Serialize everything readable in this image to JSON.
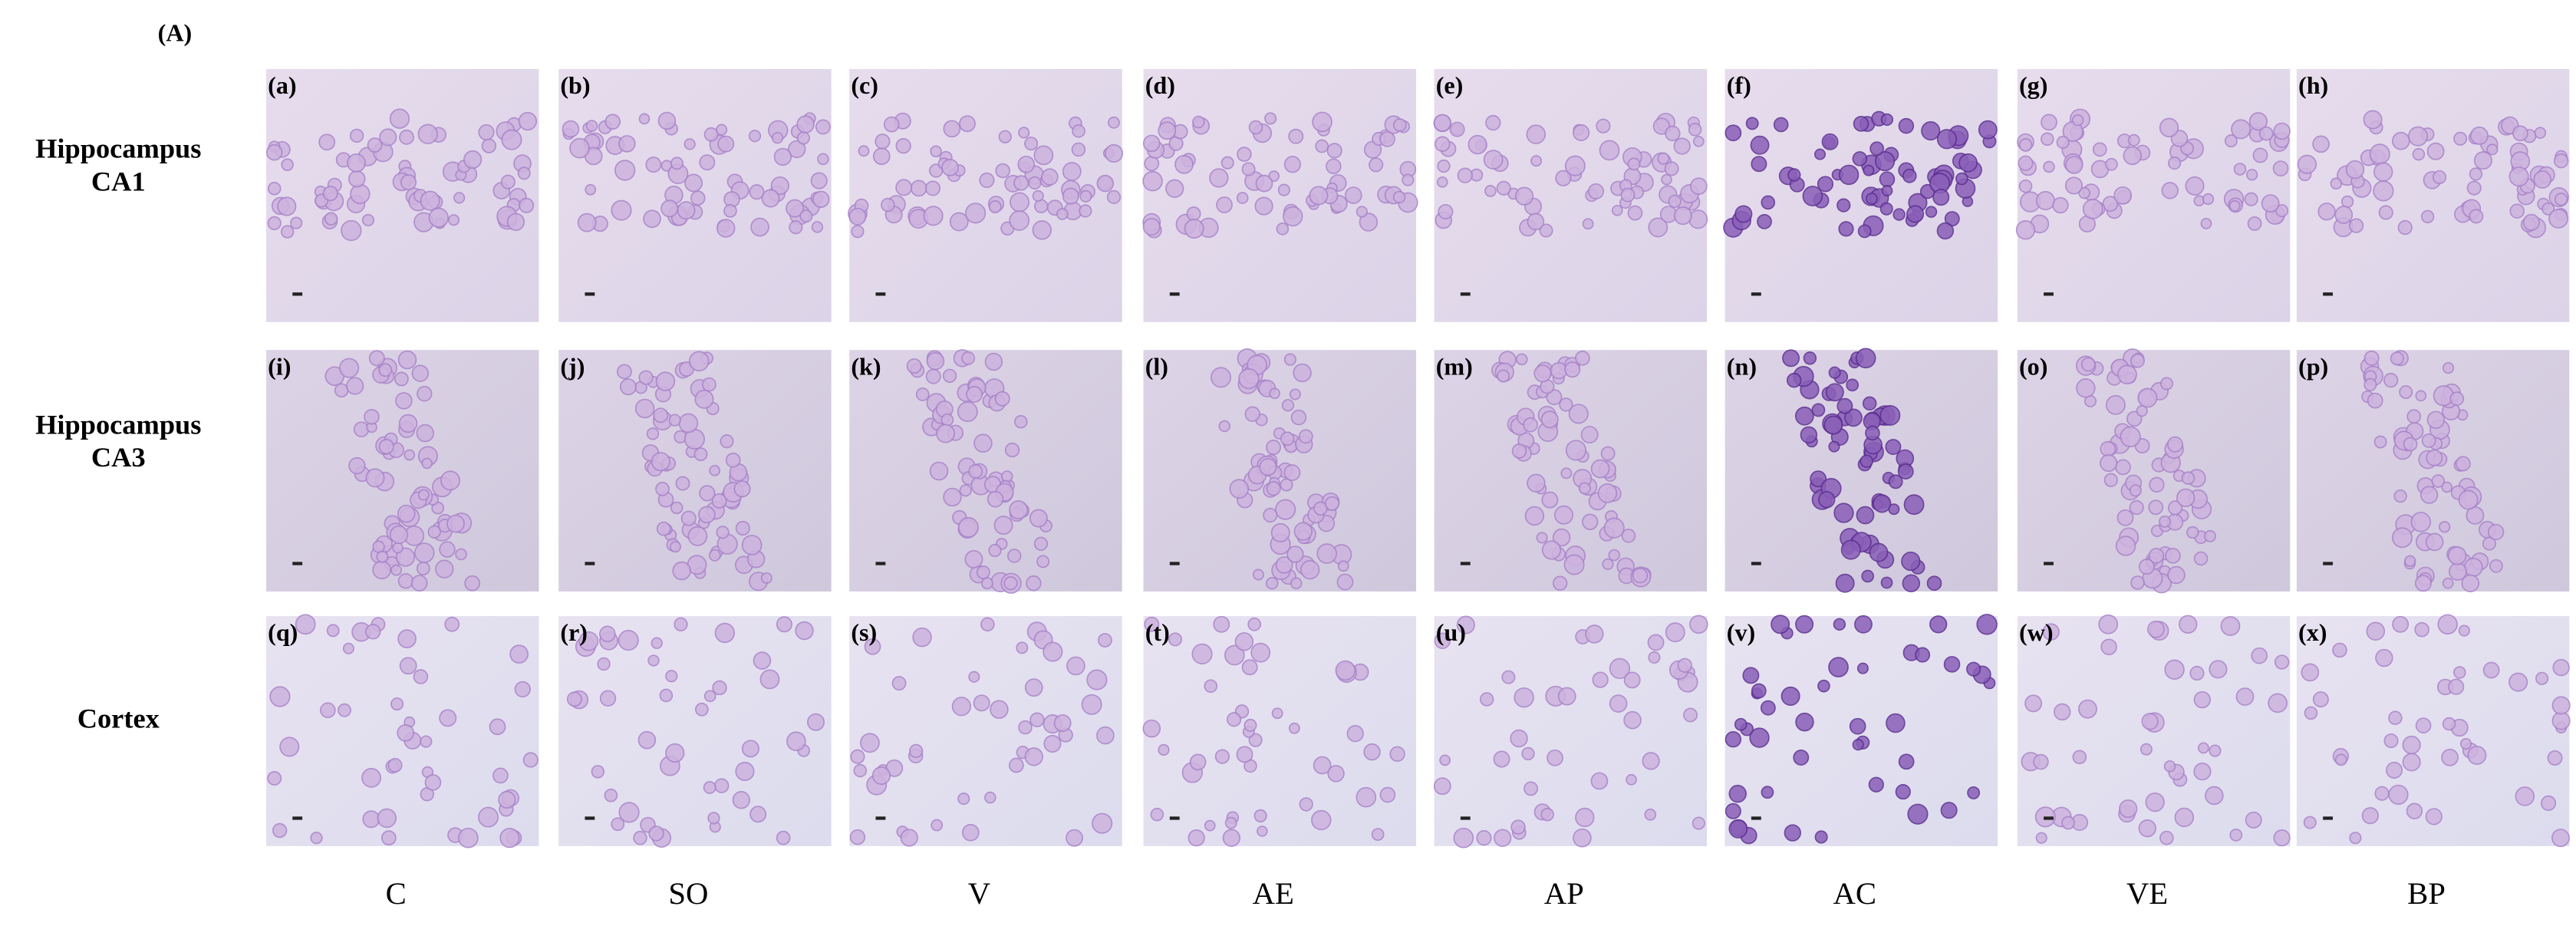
{
  "panel_label": "(A)",
  "row_labels": [
    [
      "Hippocampus",
      "CA1"
    ],
    [
      "Hippocampus",
      "CA3"
    ],
    [
      "Cortex"
    ]
  ],
  "column_labels": [
    "C",
    "SO",
    "V",
    "AE",
    "AP",
    "AC",
    "VE",
    "BP"
  ],
  "panels": [
    [
      "(a)",
      "(b)",
      "(c)",
      "(d)",
      "(e)",
      "(f)",
      "(g)",
      "(h)"
    ],
    [
      "(i)",
      "(j)",
      "(k)",
      "(l)",
      "(m)",
      "(n)",
      "(o)",
      "(p)"
    ],
    [
      "(q)",
      "(r)",
      "(s)",
      "(t)",
      "(u)",
      "(v)",
      "(w)",
      "(x)"
    ]
  ]
}
